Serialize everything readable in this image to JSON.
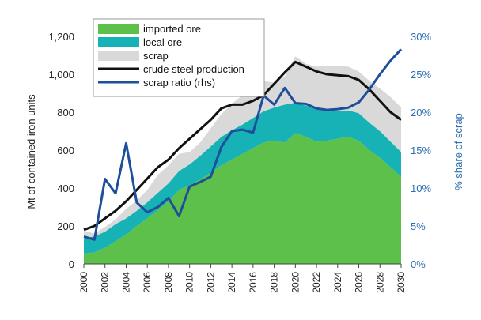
{
  "chart_data": {
    "type": "area",
    "x": [
      2000,
      2001,
      2002,
      2003,
      2004,
      2005,
      2006,
      2007,
      2008,
      2009,
      2010,
      2011,
      2012,
      2013,
      2014,
      2015,
      2016,
      2017,
      2018,
      2019,
      2020,
      2021,
      2022,
      2023,
      2024,
      2025,
      2026,
      2027,
      2028,
      2029,
      2030
    ],
    "x_tick_labels": [
      "2000",
      "2002",
      "2004",
      "2006",
      "2008",
      "2010",
      "2012",
      "2014",
      "2016",
      "2018",
      "2020",
      "2022",
      "2024",
      "2026",
      "2028",
      "2030"
    ],
    "x_tick_values": [
      2000,
      2002,
      2004,
      2006,
      2008,
      2010,
      2012,
      2014,
      2016,
      2018,
      2020,
      2022,
      2024,
      2026,
      2028,
      2030
    ],
    "ylabel": "Mt of contained iron units",
    "y2label": "% share of scrap",
    "ylim": [
      0,
      1300
    ],
    "y_ticks": [
      0,
      200,
      400,
      600,
      800,
      1000,
      1200
    ],
    "y_tick_labels": [
      "0",
      "200",
      "400",
      "600",
      "800",
      "1,000",
      "1,200"
    ],
    "y2lim": [
      0,
      32.5
    ],
    "y2_ticks": [
      0,
      5,
      10,
      15,
      20,
      25,
      30
    ],
    "y2_tick_labels": [
      "0%",
      "5%",
      "10%",
      "15%",
      "20%",
      "25%",
      "30%"
    ],
    "grid": false,
    "legend_position": "top-left",
    "series": [
      {
        "name": "imported ore",
        "kind": "area",
        "color": "#5cc04a",
        "values": [
          55,
          60,
          85,
          120,
          155,
          200,
          240,
          285,
          330,
          390,
          415,
          445,
          480,
          520,
          550,
          580,
          610,
          640,
          650,
          640,
          690,
          670,
          645,
          650,
          660,
          670,
          650,
          600,
          560,
          510,
          460
        ]
      },
      {
        "name": "local ore",
        "kind": "area",
        "color": "#17b2b5",
        "values": [
          80,
          85,
          85,
          90,
          85,
          80,
          85,
          90,
          95,
          100,
          110,
          125,
          140,
          150,
          155,
          155,
          160,
          165,
          175,
          200,
          160,
          165,
          175,
          160,
          145,
          140,
          145,
          145,
          140,
          135,
          130
        ]
      },
      {
        "name": "scrap",
        "kind": "area",
        "color": "#d9d9d9",
        "values": [
          40,
          15,
          25,
          25,
          50,
          55,
          65,
          95,
          95,
          90,
          65,
          70,
          95,
          120,
          140,
          155,
          160,
          160,
          130,
          150,
          245,
          220,
          220,
          235,
          240,
          230,
          220,
          220,
          225,
          235,
          235
        ]
      },
      {
        "name": "crude steel production",
        "kind": "line",
        "color": "#111111",
        "values": [
          180,
          200,
          240,
          280,
          330,
          390,
          450,
          510,
          550,
          610,
          660,
          710,
          760,
          820,
          840,
          840,
          860,
          890,
          950,
          1010,
          1065,
          1040,
          1015,
          1000,
          995,
          990,
          970,
          920,
          860,
          800,
          760
        ]
      },
      {
        "name": "scrap ratio (rhs)",
        "kind": "line",
        "axis": "right",
        "color": "#1f4e9a",
        "values": [
          3.6,
          3.2,
          11.2,
          9.3,
          15.9,
          8.1,
          6.8,
          7.5,
          8.7,
          6.3,
          10.2,
          10.8,
          11.5,
          15.4,
          17.5,
          17.7,
          17.3,
          22.2,
          21.0,
          23.2,
          21.2,
          21.1,
          20.5,
          20.3,
          20.4,
          20.6,
          21.3,
          23.0,
          25.0,
          26.8,
          28.3
        ]
      }
    ]
  }
}
